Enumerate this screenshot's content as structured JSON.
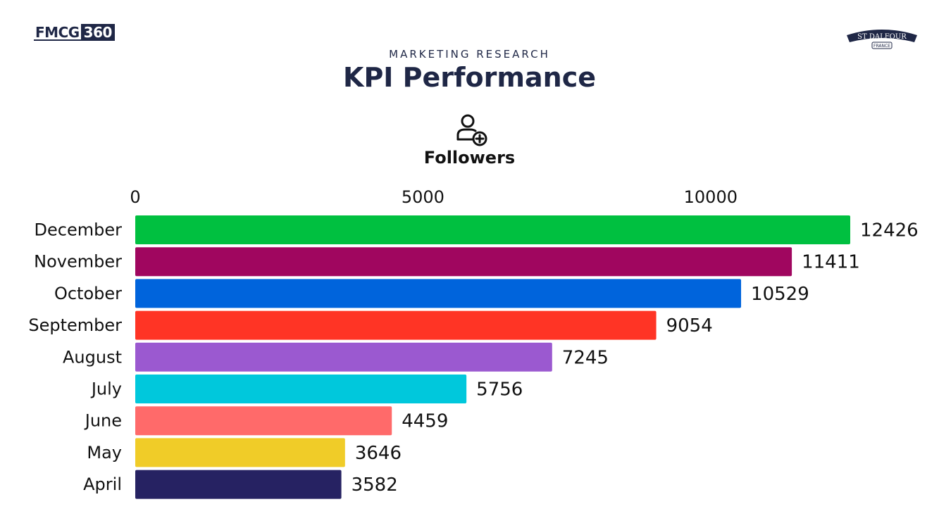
{
  "header": {
    "brand_left_a": "FMCG",
    "brand_left_b": "360",
    "brand_right": "ST DALFOUR",
    "brand_right_sub": "FRANCE",
    "kicker": "MARKETING RESEARCH",
    "title": "KPI Performance",
    "metric_label": "Followers",
    "metric_icon": "user-add-icon"
  },
  "chart_data": {
    "type": "bar",
    "orientation": "horizontal",
    "title": "Followers",
    "xlabel": "",
    "ylabel": "",
    "xlim": [
      0,
      12426
    ],
    "x_ticks": [
      0,
      5000,
      10000
    ],
    "x_tick_labels": [
      "0",
      "5000",
      "10000"
    ],
    "axis_position": "top",
    "grid": false,
    "categories": [
      "December",
      "November",
      "October",
      "September",
      "August",
      "July",
      "June",
      "May",
      "April"
    ],
    "values": [
      12426,
      11411,
      10529,
      9054,
      7245,
      5756,
      4459,
      3646,
      3582
    ],
    "value_labels": [
      "12426",
      "11411",
      "10529",
      "9054",
      "7245",
      "5756",
      "4459",
      "3646",
      "3582"
    ],
    "colors": [
      "#00c040",
      "#a0065f",
      "#0064dc",
      "#ff3425",
      "#9b59d0",
      "#00c8dc",
      "#ff6a6a",
      "#f0cc28",
      "#262262"
    ]
  }
}
